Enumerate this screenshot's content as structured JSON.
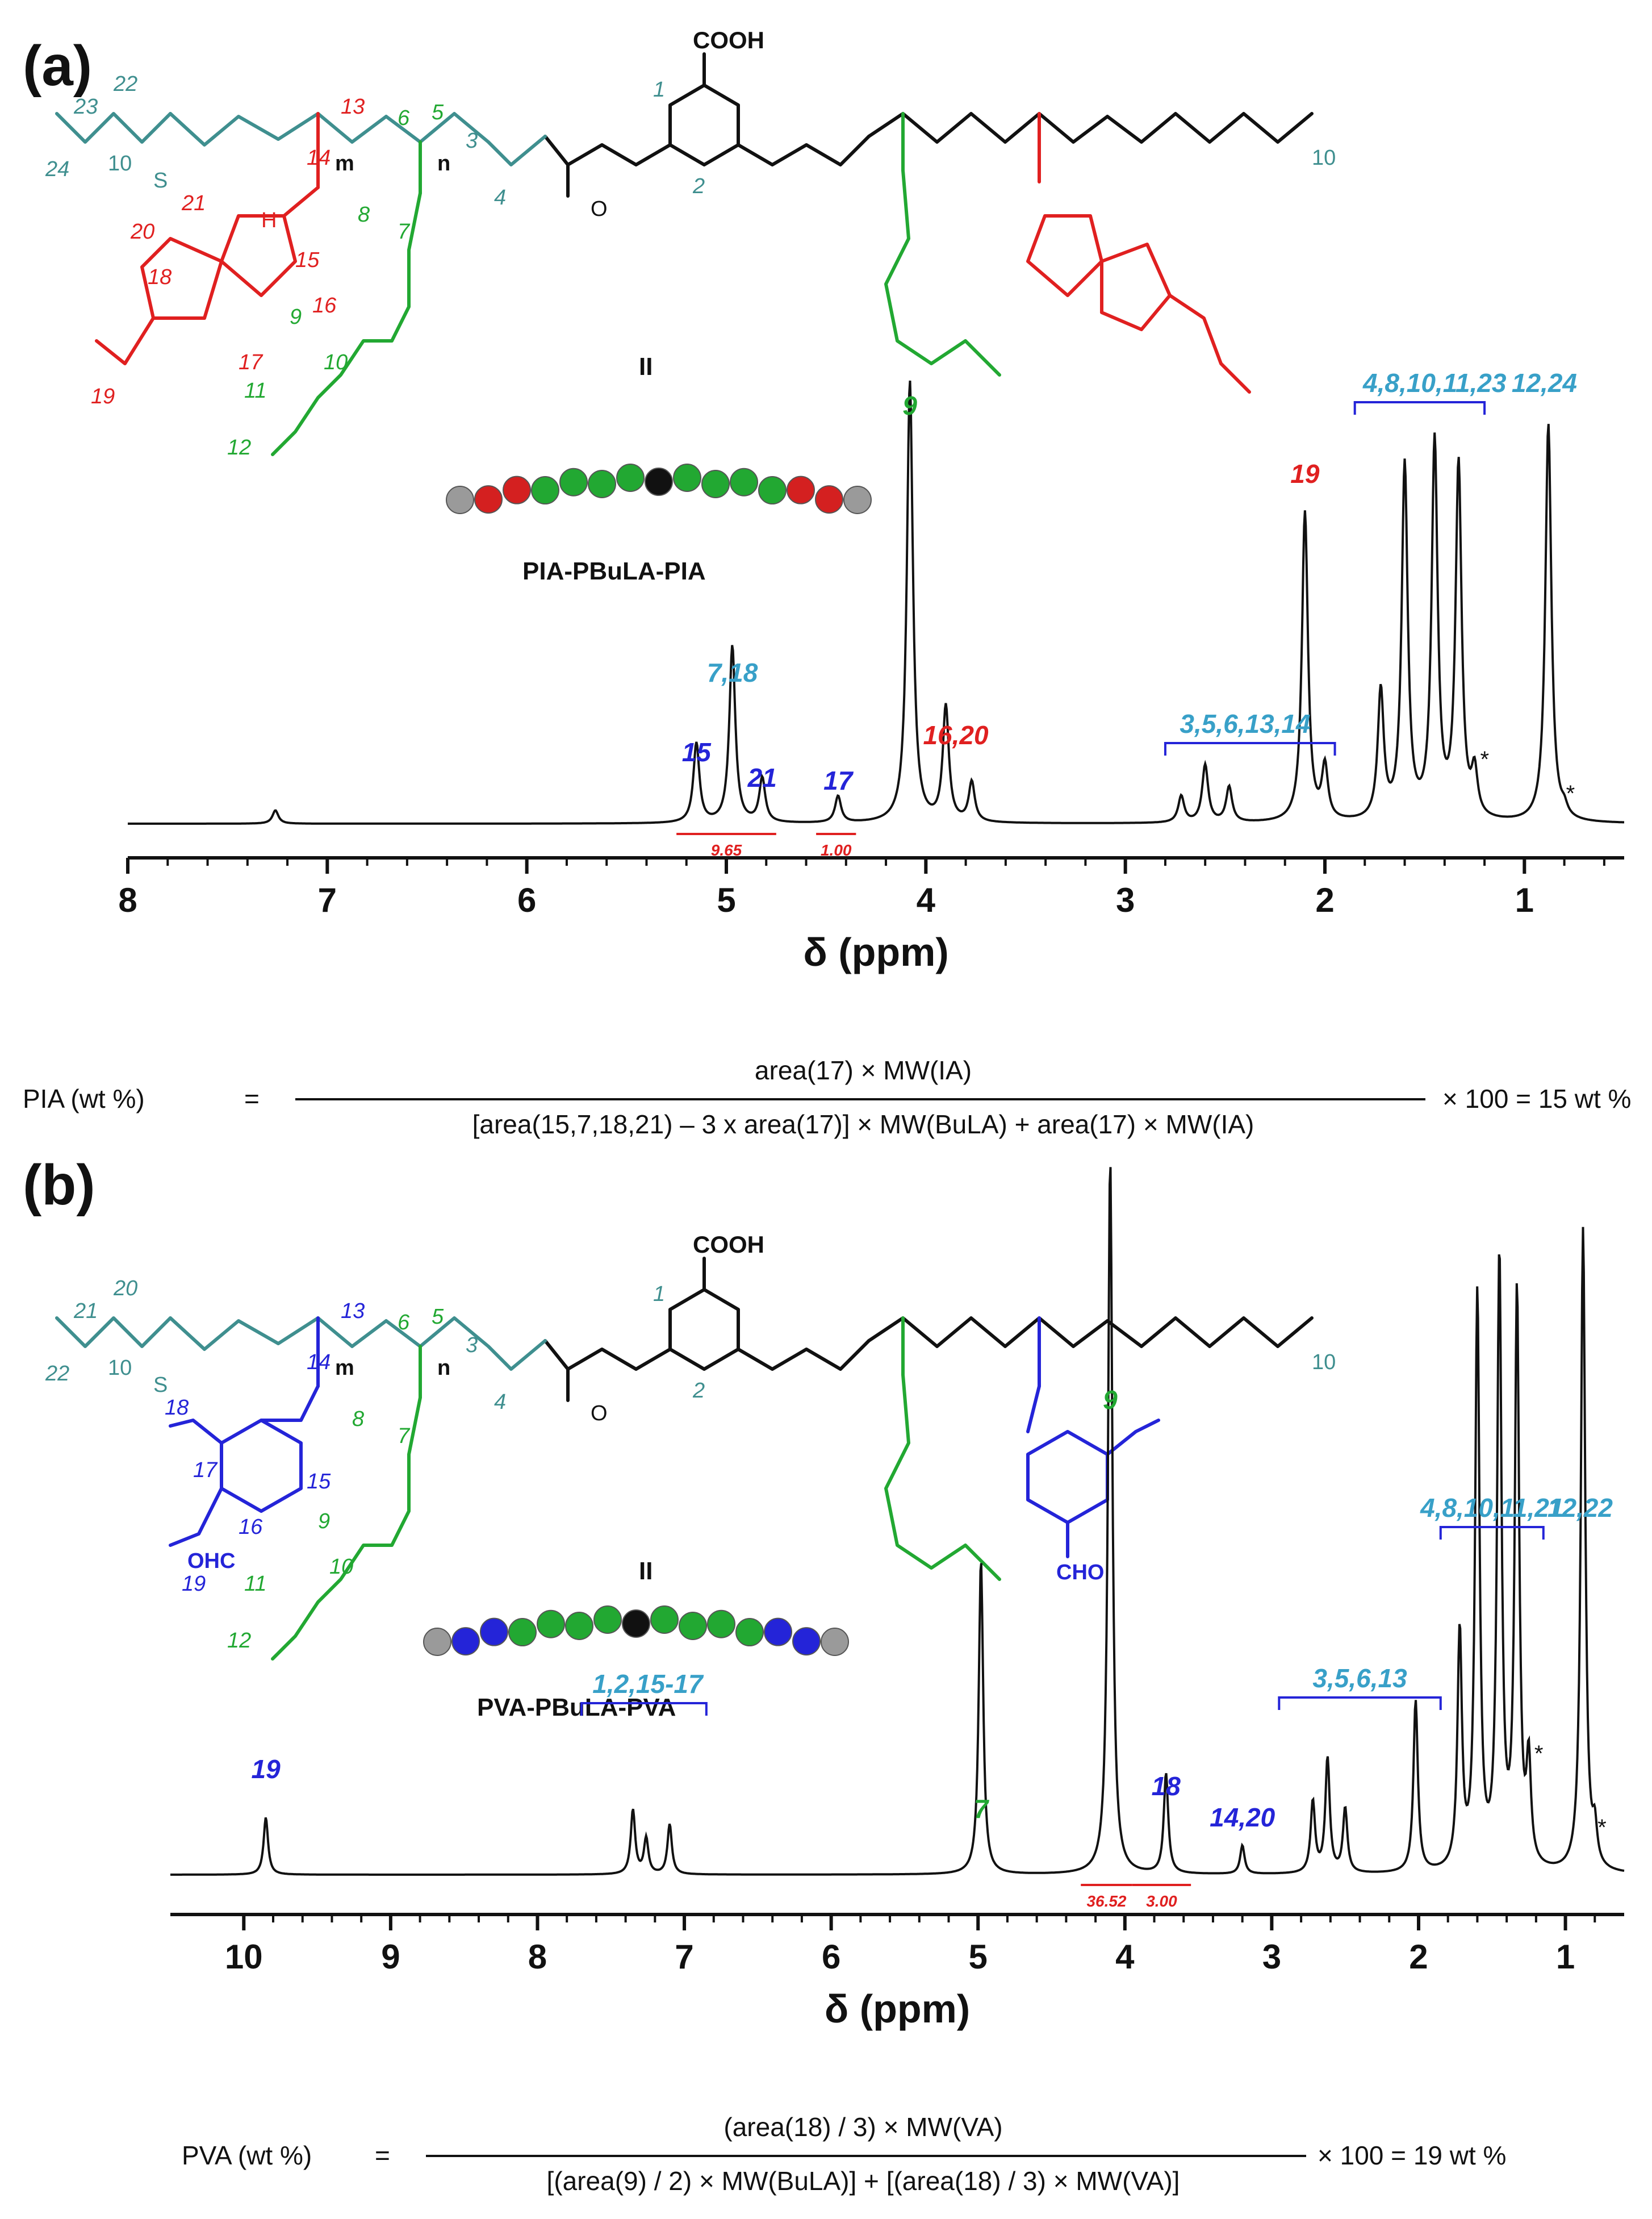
{
  "panels": [
    {
      "id": "a",
      "panel_label": "(a)",
      "structure": {
        "top_group": "COOH",
        "center_label": "II",
        "name": "PIA-PBuLA-PIA",
        "repeat_units": [
          "m",
          "n"
        ],
        "chain_end": "10",
        "atom_labels_teal": [
          "22",
          "23",
          "24",
          "10",
          "3",
          "4",
          "5",
          "6",
          "1",
          "2"
        ],
        "atom_labels_red": [
          "13",
          "14",
          "15",
          "16",
          "17",
          "18",
          "19",
          "20",
          "21"
        ],
        "atom_labels_green": [
          "7",
          "8",
          "9",
          "10",
          "11",
          "12"
        ],
        "heteroatoms": [
          "S",
          "O",
          "H"
        ],
        "bead_colors": [
          "gray",
          "red",
          "red",
          "green",
          "green",
          "green",
          "green",
          "black",
          "green",
          "green",
          "green",
          "green",
          "red",
          "red",
          "gray"
        ]
      },
      "peak_labels": [
        {
          "text": "15",
          "color": "blue",
          "ppm": 5.15
        },
        {
          "text": "7,18",
          "color": "mixed",
          "ppm": 4.97
        },
        {
          "text": "21",
          "color": "blue",
          "ppm": 4.82
        },
        {
          "text": "17",
          "color": "blue",
          "ppm": 4.44
        },
        {
          "text": "9",
          "color": "green",
          "ppm": 4.08
        },
        {
          "text": "16,20",
          "color": "red",
          "ppm": 3.85
        },
        {
          "text": "3,5,6,13,14",
          "color": "mixed",
          "ppm": 2.4
        },
        {
          "text": "19",
          "color": "red",
          "ppm": 2.1
        },
        {
          "text": "4,8,10,11,23",
          "color": "mixed",
          "ppm": 1.45
        },
        {
          "text": "12,24",
          "color": "mixed",
          "ppm": 0.9
        }
      ],
      "integrals": [
        {
          "value": "9.65",
          "from": 5.25,
          "to": 4.75
        },
        {
          "value": "1.00",
          "from": 4.55,
          "to": 4.35
        }
      ],
      "asterisks": [
        "*",
        "*"
      ],
      "equation": {
        "lhs": "PIA (wt %)",
        "eq": "=",
        "numerator": "area(17) × MW(IA)",
        "denominator": "[area(15,7,18,21) – 3 x area(17)] × MW(BuLA) + area(17) × MW(IA)",
        "result": "× 100 = 15 wt %"
      }
    },
    {
      "id": "b",
      "panel_label": "(b)",
      "structure": {
        "top_group": "COOH",
        "center_label": "II",
        "name": "PVA-PBuLA-PVA",
        "repeat_units": [
          "m",
          "n"
        ],
        "chain_end": "10",
        "aldehyde_left": "OHC",
        "aldehyde_right": "CHO",
        "atom_labels_teal": [
          "20",
          "21",
          "22",
          "10",
          "3",
          "4",
          "5",
          "6",
          "1",
          "2"
        ],
        "atom_labels_blue": [
          "13",
          "14",
          "15",
          "16",
          "17",
          "18",
          "19"
        ],
        "atom_labels_green": [
          "7",
          "8",
          "9",
          "10",
          "11",
          "12"
        ],
        "heteroatoms": [
          "S",
          "O"
        ],
        "bead_colors": [
          "gray",
          "blue",
          "blue",
          "green",
          "green",
          "green",
          "green",
          "black",
          "green",
          "green",
          "green",
          "green",
          "blue",
          "blue",
          "gray"
        ]
      },
      "peak_labels": [
        {
          "text": "19",
          "color": "blue",
          "ppm": 9.85
        },
        {
          "text": "1,2,15-17",
          "color": "mixed",
          "ppm": 7.25
        },
        {
          "text": "7",
          "color": "green",
          "ppm": 4.98
        },
        {
          "text": "9",
          "color": "green",
          "ppm": 4.1
        },
        {
          "text": "18",
          "color": "blue",
          "ppm": 3.72
        },
        {
          "text": "14,20",
          "color": "blue",
          "ppm": 3.2
        },
        {
          "text": "3,5,6,13",
          "color": "mixed",
          "ppm": 2.4
        },
        {
          "text": "4,8,10,11,21",
          "color": "mixed",
          "ppm": 1.5
        },
        {
          "text": "12,22",
          "color": "mixed",
          "ppm": 0.9
        }
      ],
      "integrals": [
        {
          "value": "36.52",
          "from": 4.3,
          "to": 3.95
        },
        {
          "value": "3.00",
          "from": 3.95,
          "to": 3.55
        }
      ],
      "asterisks": [
        "*",
        "*"
      ],
      "equation": {
        "lhs": "PVA (wt %)",
        "eq": "=",
        "numerator": "(area(18) / 3) × MW(VA)",
        "denominator": "[(area(9) / 2) × MW(BuLA)] + [(area(18) / 3) × MW(VA)]",
        "result": "× 100 = 19 wt %"
      }
    }
  ],
  "colors": {
    "teal": "#3f8f8f",
    "red": "#e02020",
    "green": "#22a832",
    "blue": "#2424d8",
    "lightblue": "#38a0c8",
    "black": "#111111"
  },
  "chart_data": [
    {
      "type": "line",
      "xlabel": "δ (ppm)",
      "xlim": [
        8.0,
        0.5
      ],
      "x_ticks": [
        "8",
        "7",
        "6",
        "5",
        "4",
        "3",
        "2",
        "1"
      ],
      "series": [
        {
          "peaks_ppm_height": [
            [
              7.26,
              0.03
            ],
            [
              5.15,
              0.18
            ],
            [
              4.97,
              0.4
            ],
            [
              4.82,
              0.1
            ],
            [
              4.44,
              0.06
            ],
            [
              4.08,
              1.0
            ],
            [
              3.9,
              0.26
            ],
            [
              3.77,
              0.09
            ],
            [
              2.72,
              0.06
            ],
            [
              2.6,
              0.13
            ],
            [
              2.48,
              0.08
            ],
            [
              2.1,
              0.7
            ],
            [
              2.0,
              0.12
            ],
            [
              1.72,
              0.29
            ],
            [
              1.6,
              0.8
            ],
            [
              1.45,
              0.85
            ],
            [
              1.33,
              0.8
            ],
            [
              1.25,
              0.1
            ],
            [
              0.88,
              0.9
            ],
            [
              0.8,
              0.02
            ]
          ]
        }
      ]
    },
    {
      "type": "line",
      "xlabel": "δ (ppm)",
      "xlim": [
        10.5,
        0.6
      ],
      "x_ticks": [
        "10",
        "9",
        "8",
        "7",
        "6",
        "5",
        "4",
        "3",
        "2",
        "1"
      ],
      "series": [
        {
          "peaks_ppm_height": [
            [
              9.85,
              0.08
            ],
            [
              7.35,
              0.09
            ],
            [
              7.26,
              0.05
            ],
            [
              7.1,
              0.07
            ],
            [
              4.98,
              0.44
            ],
            [
              4.1,
              1.0
            ],
            [
              3.72,
              0.14
            ],
            [
              3.2,
              0.04
            ],
            [
              2.72,
              0.1
            ],
            [
              2.62,
              0.16
            ],
            [
              2.5,
              0.09
            ],
            [
              2.02,
              0.24
            ],
            [
              1.72,
              0.33
            ],
            [
              1.6,
              0.8
            ],
            [
              1.45,
              0.85
            ],
            [
              1.33,
              0.8
            ],
            [
              1.25,
              0.14
            ],
            [
              0.88,
              0.9
            ],
            [
              0.8,
              0.05
            ]
          ]
        }
      ]
    }
  ]
}
